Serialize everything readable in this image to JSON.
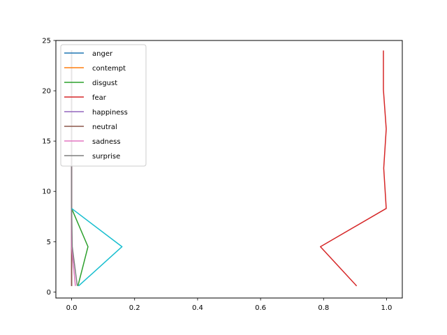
{
  "chart_data": {
    "type": "line",
    "xlim": [
      -0.05,
      1.05
    ],
    "ylim": [
      -0.6,
      25
    ],
    "x_ticks": [
      0.0,
      0.2,
      0.4,
      0.6,
      0.8,
      1.0
    ],
    "x_tick_labels": [
      "0.0",
      "0.2",
      "0.4",
      "0.6",
      "0.8",
      "1.0"
    ],
    "y_ticks": [
      0,
      5,
      10,
      15,
      20,
      25
    ],
    "y_tick_labels": [
      "0",
      "5",
      "10",
      "15",
      "20",
      "25"
    ],
    "grid": false,
    "legend_position": "upper-left",
    "series": [
      {
        "name": "anger",
        "color": "#1f77b4",
        "points": [
          [
            0.0,
            0.6
          ],
          [
            0.0,
            4.5
          ],
          [
            0.0,
            8.3
          ],
          [
            0.0,
            12.5
          ],
          [
            0.0,
            16.0
          ],
          [
            0.0,
            20.0
          ],
          [
            0.0,
            24.0
          ]
        ]
      },
      {
        "name": "contempt",
        "color": "#ff7f0e",
        "points": [
          [
            0.0,
            0.6
          ],
          [
            0.0,
            4.5
          ],
          [
            0.0,
            8.3
          ],
          [
            0.0,
            12.5
          ],
          [
            0.0,
            16.0
          ],
          [
            0.0,
            20.0
          ],
          [
            0.0,
            24.0
          ]
        ]
      },
      {
        "name": "disgust",
        "color": "#2ca02c",
        "points": [
          [
            0.02,
            0.6
          ],
          [
            0.052,
            4.5
          ],
          [
            0.0,
            8.3
          ],
          [
            0.0,
            12.5
          ],
          [
            0.0,
            16.0
          ],
          [
            0.0,
            20.0
          ],
          [
            0.0,
            24.0
          ]
        ]
      },
      {
        "name": "fear",
        "color": "#d62728",
        "points": [
          [
            0.905,
            0.6
          ],
          [
            0.79,
            4.5
          ],
          [
            0.999,
            8.3
          ],
          [
            0.991,
            12.3
          ],
          [
            0.999,
            16.2
          ],
          [
            0.99,
            20.1
          ],
          [
            0.99,
            24.0
          ]
        ]
      },
      {
        "name": "happiness",
        "color": "#9467bd",
        "points": [
          [
            0.0,
            0.6
          ],
          [
            0.0,
            4.5
          ],
          [
            0.0,
            8.3
          ],
          [
            0.0,
            12.5
          ],
          [
            0.0,
            16.0
          ],
          [
            0.0,
            20.0
          ],
          [
            0.0,
            24.0
          ]
        ]
      },
      {
        "name": "neutral",
        "color": "#8c564b",
        "points": [
          [
            0.0,
            0.6
          ],
          [
            0.0,
            4.5
          ],
          [
            0.0,
            8.3
          ],
          [
            0.0,
            12.5
          ],
          [
            0.0,
            16.0
          ],
          [
            0.0,
            20.0
          ],
          [
            0.0,
            24.0
          ]
        ]
      },
      {
        "name": "sadness",
        "color": "#e377c2",
        "points": [
          [
            0.012,
            0.6
          ],
          [
            0.0,
            4.5
          ],
          [
            0.0,
            8.3
          ],
          [
            0.0,
            12.5
          ],
          [
            0.0,
            16.0
          ],
          [
            0.0,
            20.0
          ],
          [
            0.0,
            24.0
          ]
        ]
      },
      {
        "name": "surprise",
        "color": "#7f7f7f",
        "points": [
          [
            0.018,
            0.6
          ],
          [
            0.002,
            4.5
          ],
          [
            0.0,
            8.3
          ],
          [
            0.0,
            12.5
          ],
          [
            0.0,
            16.0
          ],
          [
            0.0,
            20.0
          ],
          [
            0.0,
            24.0
          ]
        ]
      },
      {
        "name": "",
        "color": "#17becf",
        "points": [
          [
            0.022,
            0.6
          ],
          [
            0.16,
            4.5
          ],
          [
            0.0,
            8.3
          ]
        ]
      }
    ]
  }
}
